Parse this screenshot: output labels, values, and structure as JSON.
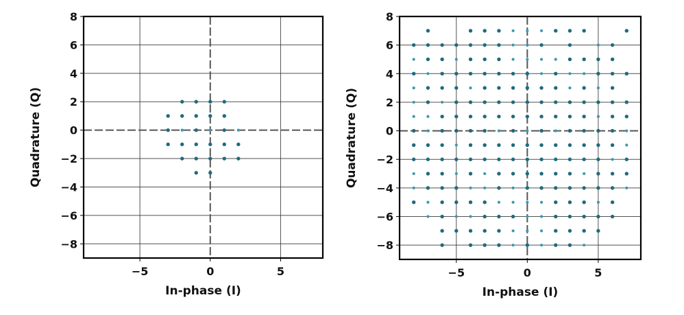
{
  "figure": {
    "panels": [
      {
        "id": "left",
        "xlabel": "In-phase (I)",
        "ylabel": "Quadrature (Q)"
      },
      {
        "id": "right",
        "xlabel": "In-phase (I)",
        "ylabel": "Quadrature (Q)"
      }
    ]
  },
  "colors": {
    "point_dark": "#1f6b7e",
    "point_light": "#3a98b0",
    "grid": "#333333",
    "axis_dashed": "#555555",
    "frame": "#000000"
  },
  "chart_data": [
    {
      "type": "scatter",
      "title": "",
      "xlabel": "In-phase (I)",
      "ylabel": "Quadrature (Q)",
      "xlim": [
        -9,
        8
      ],
      "ylim": [
        -9,
        8
      ],
      "xticks": [
        -5,
        0,
        5
      ],
      "xtick_labels": [
        "−5",
        "0",
        "5"
      ],
      "yticks": [
        8,
        6,
        4,
        2,
        0,
        -2,
        -4,
        -6,
        -8
      ],
      "ytick_labels": [
        "8",
        "6",
        "4",
        "2",
        "0",
        "−2",
        "−4",
        "−6",
        "−8"
      ],
      "grid": true,
      "zero_lines": "dashed",
      "points": [
        [
          -2,
          2
        ],
        [
          -1,
          2
        ],
        [
          0,
          2
        ],
        [
          1,
          2
        ],
        [
          -3,
          1
        ],
        [
          -2,
          1
        ],
        [
          -1,
          1
        ],
        [
          0,
          1
        ],
        [
          1,
          1
        ],
        [
          -3,
          0
        ],
        [
          -2,
          0
        ],
        [
          -1,
          0
        ],
        [
          0,
          0
        ],
        [
          1,
          0
        ],
        [
          2,
          0
        ],
        [
          -3,
          -1
        ],
        [
          -2,
          -1
        ],
        [
          -1,
          -1
        ],
        [
          0,
          -1
        ],
        [
          1,
          -1
        ],
        [
          2,
          -1
        ],
        [
          -2,
          -2
        ],
        [
          -1,
          -2
        ],
        [
          0,
          -2
        ],
        [
          1,
          -2
        ],
        [
          2,
          -2
        ],
        [
          -1,
          -3
        ],
        [
          0,
          -3
        ]
      ]
    },
    {
      "type": "scatter",
      "title": "",
      "xlabel": "In-phase (I)",
      "ylabel": "Quadrature (Q)",
      "xlim": [
        -9,
        8
      ],
      "ylim": [
        -9,
        8
      ],
      "xticks": [
        -5,
        0,
        5
      ],
      "xtick_labels": [
        "−5",
        "0",
        "5"
      ],
      "yticks": [
        8,
        6,
        4,
        2,
        0,
        -2,
        -4,
        -6,
        -8
      ],
      "ytick_labels": [
        "8",
        "6",
        "4",
        "2",
        "0",
        "−2",
        "−4",
        "−6",
        "−8"
      ],
      "grid": true,
      "zero_lines": "dashed",
      "rows": [
        {
          "q": 7,
          "i": [
            -7,
            -4,
            -3,
            -2,
            -1,
            0,
            1,
            2,
            3,
            4,
            7
          ]
        },
        {
          "q": 6,
          "i": [
            -8,
            -7,
            -6,
            -5,
            -4,
            -3,
            -2,
            -1,
            0,
            1,
            3,
            5,
            6
          ]
        },
        {
          "q": 5,
          "i": [
            -8,
            -7,
            -6,
            -5,
            -4,
            -3,
            -2,
            -1,
            0,
            1,
            2,
            3,
            4,
            5,
            6
          ]
        },
        {
          "q": 4,
          "i": [
            -8,
            -7,
            -6,
            -5,
            -4,
            -3,
            -2,
            -1,
            0,
            1,
            2,
            3,
            4,
            5,
            6,
            7
          ]
        },
        {
          "q": 3,
          "i": [
            -8,
            -7,
            -6,
            -5,
            -4,
            -3,
            -2,
            -1,
            0,
            1,
            2,
            3,
            4,
            5,
            6
          ]
        },
        {
          "q": 2,
          "i": [
            -8,
            -7,
            -6,
            -5,
            -4,
            -3,
            -2,
            -1,
            0,
            1,
            2,
            3,
            4,
            5,
            6,
            7
          ]
        },
        {
          "q": 1,
          "i": [
            -8,
            -7,
            -6,
            -5,
            -4,
            -3,
            -2,
            -1,
            0,
            1,
            2,
            3,
            4,
            5,
            6,
            7
          ]
        },
        {
          "q": 0,
          "i": [
            -8,
            -7,
            -6,
            -5,
            -4,
            -3,
            -2,
            -1,
            0,
            1,
            2,
            3,
            4,
            5,
            6,
            7
          ]
        },
        {
          "q": -1,
          "i": [
            -8,
            -7,
            -6,
            -5,
            -4,
            -3,
            -2,
            -1,
            0,
            1,
            2,
            3,
            4,
            5,
            6,
            7
          ]
        },
        {
          "q": -2,
          "i": [
            -8,
            -7,
            -6,
            -5,
            -4,
            -3,
            -2,
            -1,
            0,
            1,
            2,
            3,
            4,
            5,
            6,
            7
          ]
        },
        {
          "q": -3,
          "i": [
            -8,
            -7,
            -6,
            -5,
            -4,
            -3,
            -2,
            -1,
            0,
            1,
            2,
            3,
            4,
            5,
            6,
            7
          ]
        },
        {
          "q": -4,
          "i": [
            -8,
            -7,
            -6,
            -5,
            -4,
            -3,
            -2,
            -1,
            0,
            1,
            2,
            3,
            4,
            5,
            6,
            7
          ]
        },
        {
          "q": -5,
          "i": [
            -8,
            -7,
            -6,
            -5,
            -4,
            -3,
            -2,
            -1,
            0,
            1,
            2,
            3,
            4,
            5,
            6
          ]
        },
        {
          "q": -6,
          "i": [
            -7,
            -6,
            -5,
            -4,
            -3,
            -2,
            -1,
            0,
            1,
            2,
            3,
            4,
            5,
            6
          ]
        },
        {
          "q": -7,
          "i": [
            -6,
            -5,
            -4,
            -3,
            -2,
            -1,
            0,
            1,
            2,
            3,
            4,
            5
          ]
        },
        {
          "q": -8,
          "i": [
            -6,
            -4,
            -3,
            -2,
            -1,
            0,
            1,
            2,
            3,
            4
          ]
        }
      ]
    }
  ]
}
